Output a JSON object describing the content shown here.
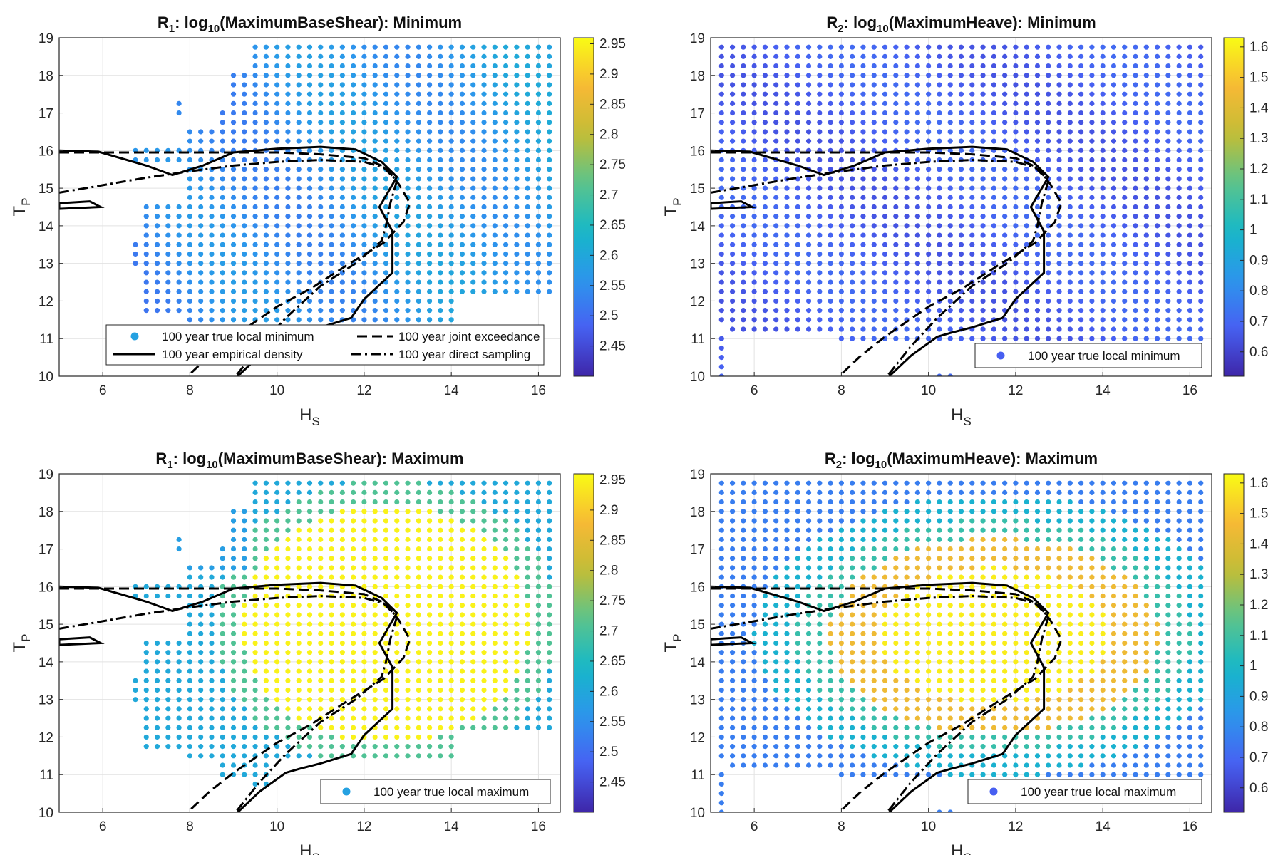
{
  "colormap": {
    "stops": [
      "#3e26a8",
      "#4760f2",
      "#2c96ec",
      "#16b8c8",
      "#5ac48c",
      "#c2bd35",
      "#f8b935",
      "#f9fb14"
    ]
  },
  "chart_data": [
    {
      "type": "scatter",
      "panel": "top-left",
      "title_parts": [
        "R",
        "1",
        ": log",
        "10",
        "(MaximumBaseShear): Minimum"
      ],
      "xlabel": [
        "H",
        "S"
      ],
      "ylabel": [
        "T",
        "P"
      ],
      "xlim": [
        5,
        16.5
      ],
      "ylim": [
        10,
        19
      ],
      "xticks": [
        6,
        8,
        10,
        12,
        14,
        16
      ],
      "yticks": [
        10,
        11,
        12,
        13,
        14,
        15,
        16,
        17,
        18,
        19
      ],
      "grid": true,
      "colorbar": {
        "range": [
          2.4,
          2.96
        ],
        "ticks": [
          "2.45",
          "2.5",
          "2.55",
          "2.6",
          "2.65",
          "2.7",
          "2.75",
          "2.8",
          "2.85",
          "2.9",
          "2.95"
        ]
      },
      "legend": {
        "placement": "bottom-center",
        "entries": [
          "100 year true local minimum",
          "100 year joint exceedance",
          "100 year empirical density",
          "100 year direct sampling"
        ]
      }
    },
    {
      "type": "scatter",
      "panel": "top-right",
      "title_parts": [
        "R",
        "2",
        ": log",
        "10",
        "(MaximumHeave): Minimum"
      ],
      "xlabel": [
        "H",
        "S"
      ],
      "ylabel": [
        "T",
        "P"
      ],
      "xlim": [
        5,
        16.5
      ],
      "ylim": [
        10,
        19
      ],
      "xticks": [
        6,
        8,
        10,
        12,
        14,
        16
      ],
      "yticks": [
        10,
        11,
        12,
        13,
        14,
        15,
        16,
        17,
        18,
        19
      ],
      "grid": true,
      "colorbar": {
        "range": [
          0.52,
          1.63
        ],
        "ticks": [
          "0.6",
          "0.7",
          "0.8",
          "0.9",
          "1",
          "1.1",
          "1.2",
          "1.3",
          "1.4",
          "1.5",
          "1.6"
        ]
      },
      "legend": {
        "placement": "bottom-right",
        "entries": [
          "100 year true local minimum"
        ]
      }
    },
    {
      "type": "scatter",
      "panel": "bottom-left",
      "title_parts": [
        "R",
        "1",
        ": log",
        "10",
        "(MaximumBaseShear): Maximum"
      ],
      "xlabel": [
        "H",
        "S"
      ],
      "ylabel": [
        "T",
        "P"
      ],
      "xlim": [
        5,
        16.5
      ],
      "ylim": [
        10,
        19
      ],
      "xticks": [
        6,
        8,
        10,
        12,
        14,
        16
      ],
      "yticks": [
        10,
        11,
        12,
        13,
        14,
        15,
        16,
        17,
        18,
        19
      ],
      "grid": true,
      "colorbar": {
        "range": [
          2.4,
          2.96
        ],
        "ticks": [
          "2.45",
          "2.5",
          "2.55",
          "2.6",
          "2.65",
          "2.7",
          "2.75",
          "2.8",
          "2.85",
          "2.9",
          "2.95"
        ]
      },
      "legend": {
        "placement": "bottom-right",
        "entries": [
          "100 year true local maximum"
        ]
      }
    },
    {
      "type": "scatter",
      "panel": "bottom-right",
      "title_parts": [
        "R",
        "2",
        ": log",
        "10",
        "(MaximumHeave): Maximum"
      ],
      "xlabel": [
        "H",
        "S"
      ],
      "ylabel": [
        "T",
        "P"
      ],
      "xlim": [
        5,
        16.5
      ],
      "ylim": [
        10,
        19
      ],
      "xticks": [
        6,
        8,
        10,
        12,
        14,
        16
      ],
      "yticks": [
        10,
        11,
        12,
        13,
        14,
        15,
        16,
        17,
        18,
        19
      ],
      "grid": true,
      "colorbar": {
        "range": [
          0.52,
          1.63
        ],
        "ticks": [
          "0.6",
          "0.7",
          "0.8",
          "0.9",
          "1",
          "1.1",
          "1.2",
          "1.3",
          "1.4",
          "1.5",
          "1.6"
        ]
      },
      "legend": {
        "placement": "bottom-right",
        "entries": [
          "100 year true local maximum"
        ]
      }
    }
  ],
  "contours": {
    "empirical_density": [
      [
        5.0,
        16.0
      ],
      [
        5.9,
        15.97
      ],
      [
        7.0,
        15.6
      ],
      [
        7.6,
        15.35
      ],
      [
        8.3,
        15.6
      ],
      [
        9.0,
        15.95
      ],
      [
        10.0,
        16.05
      ],
      [
        11.0,
        16.1
      ],
      [
        11.8,
        16.03
      ],
      [
        12.4,
        15.7
      ],
      [
        12.75,
        15.3
      ],
      [
        12.35,
        14.5
      ],
      [
        12.65,
        13.85
      ],
      [
        12.65,
        12.75
      ],
      [
        12.0,
        12.05
      ],
      [
        11.7,
        11.55
      ],
      [
        11.0,
        11.3
      ],
      [
        10.5,
        11.15
      ],
      [
        10.2,
        11.05
      ],
      [
        9.6,
        10.55
      ],
      [
        9.1,
        10.0
      ]
    ],
    "empirical_density_small": [
      [
        5.0,
        14.6
      ],
      [
        5.7,
        14.65
      ],
      [
        5.95,
        14.5
      ],
      [
        5.0,
        14.45
      ],
      [
        5.0,
        14.6
      ]
    ],
    "joint_exceedance": [
      [
        5.0,
        15.95
      ],
      [
        6.0,
        15.95
      ],
      [
        8.0,
        15.95
      ],
      [
        10.0,
        15.95
      ],
      [
        11.0,
        15.9
      ],
      [
        12.0,
        15.8
      ],
      [
        12.5,
        15.55
      ],
      [
        12.8,
        15.1
      ],
      [
        13.05,
        14.6
      ],
      [
        12.9,
        14.1
      ],
      [
        12.45,
        13.55
      ],
      [
        11.6,
        12.95
      ],
      [
        10.8,
        12.35
      ],
      [
        10.0,
        11.85
      ],
      [
        9.5,
        11.45
      ],
      [
        9.0,
        11.05
      ],
      [
        8.45,
        10.55
      ],
      [
        7.95,
        10.0
      ]
    ],
    "direct_sampling": [
      [
        5.0,
        14.88
      ],
      [
        6.0,
        15.08
      ],
      [
        7.0,
        15.28
      ],
      [
        8.0,
        15.45
      ],
      [
        9.0,
        15.6
      ],
      [
        10.0,
        15.7
      ],
      [
        11.0,
        15.75
      ],
      [
        12.0,
        15.7
      ],
      [
        12.45,
        15.55
      ],
      [
        12.75,
        15.2
      ],
      [
        12.6,
        14.6
      ],
      [
        12.5,
        14.0
      ],
      [
        12.4,
        13.6
      ],
      [
        11.8,
        13.0
      ],
      [
        11.0,
        12.4
      ],
      [
        10.2,
        11.55
      ],
      [
        9.6,
        10.8
      ],
      [
        9.05,
        10.0
      ]
    ]
  }
}
